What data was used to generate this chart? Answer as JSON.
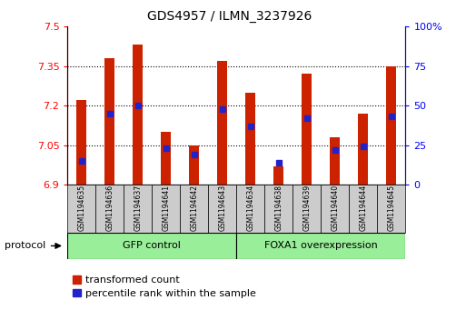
{
  "title": "GDS4957 / ILMN_3237926",
  "samples": [
    "GSM1194635",
    "GSM1194636",
    "GSM1194637",
    "GSM1194641",
    "GSM1194642",
    "GSM1194643",
    "GSM1194634",
    "GSM1194638",
    "GSM1194639",
    "GSM1194640",
    "GSM1194644",
    "GSM1194645"
  ],
  "transformed_count": [
    7.22,
    7.38,
    7.43,
    7.1,
    7.05,
    7.37,
    7.25,
    6.97,
    7.32,
    7.08,
    7.17,
    7.35
  ],
  "percentile_rank": [
    15,
    45,
    50,
    23,
    19,
    48,
    37,
    14,
    42,
    22,
    24,
    43
  ],
  "bar_bottom": 6.9,
  "ylim_left": [
    6.9,
    7.5
  ],
  "ylim_right": [
    0,
    100
  ],
  "yticks_left": [
    6.9,
    7.05,
    7.2,
    7.35,
    7.5
  ],
  "yticks_right": [
    0,
    25,
    50,
    75,
    100
  ],
  "ytick_labels_right": [
    "0",
    "25",
    "50",
    "75",
    "100%"
  ],
  "bar_color": "#cc2200",
  "percentile_color": "#2222cc",
  "group1_label": "GFP control",
  "group2_label": "FOXA1 overexpression",
  "group1_count": 6,
  "group2_count": 6,
  "group_box_color": "#99ee99",
  "sample_box_color": "#cccccc",
  "legend_red_label": "transformed count",
  "legend_blue_label": "percentile rank within the sample",
  "protocol_label": "protocol",
  "bg_color": "#ffffff",
  "dotted_lines": [
    7.05,
    7.2,
    7.35
  ]
}
